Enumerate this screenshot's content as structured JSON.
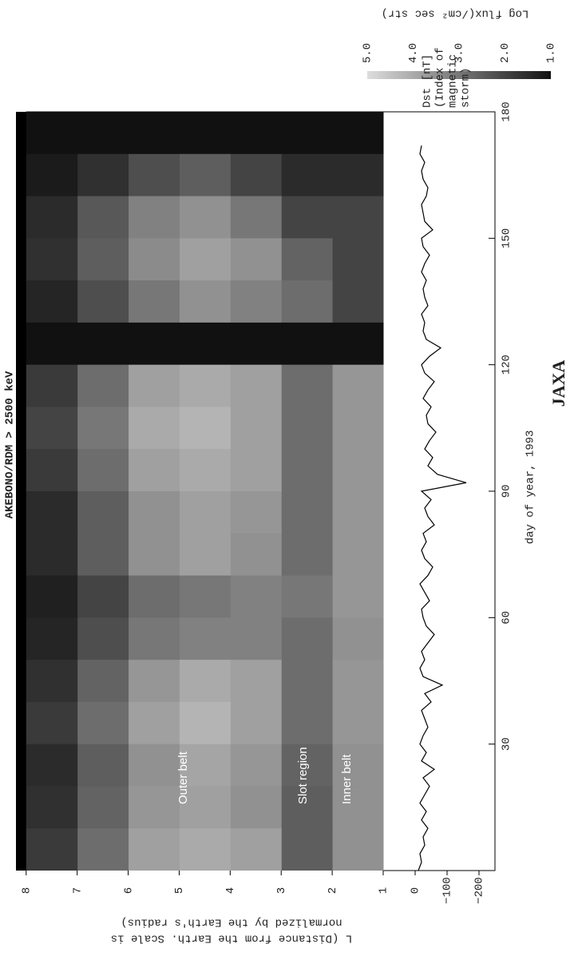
{
  "chart_data": [
    {
      "type": "heatmap",
      "title": "AKEBONO/RDM    > 2500 keV",
      "ylabel": [
        "L (Distance from the Earth. Scale is",
        "normalized by the Earth's radius)"
      ],
      "x_bins": [
        0,
        10,
        20,
        30,
        40,
        50,
        60,
        70,
        80,
        90,
        100,
        110,
        120,
        130,
        140,
        150,
        160,
        170,
        180
      ],
      "y_bins": [
        1,
        2,
        3,
        4,
        5,
        6,
        7,
        8
      ],
      "z": [
        [
          3.5,
          3.5,
          3.5,
          3.6,
          3.6,
          3.5,
          3.6,
          3.6,
          3.6,
          3.6,
          3.6,
          3.6,
          1.0,
          2.0,
          2.0,
          2.0,
          1.5,
          1.0
        ],
        [
          2.5,
          2.5,
          2.6,
          2.8,
          2.8,
          2.8,
          3.0,
          2.8,
          2.8,
          2.8,
          2.8,
          2.8,
          1.0,
          2.8,
          2.6,
          2.0,
          1.5,
          1.0
        ],
        [
          3.8,
          3.5,
          3.6,
          3.8,
          3.8,
          3.2,
          3.2,
          3.5,
          3.6,
          3.8,
          3.8,
          3.8,
          1.0,
          3.2,
          3.5,
          3.0,
          2.0,
          1.0
        ],
        [
          4.0,
          3.8,
          3.9,
          4.2,
          4.0,
          3.2,
          3.0,
          3.8,
          3.8,
          4.0,
          4.2,
          4.0,
          1.0,
          3.5,
          3.8,
          3.5,
          2.5,
          1.0
        ],
        [
          3.8,
          3.6,
          3.5,
          3.8,
          3.6,
          3.0,
          2.8,
          3.5,
          3.5,
          3.8,
          4.0,
          3.8,
          1.0,
          3.0,
          3.4,
          3.2,
          2.2,
          1.0
        ],
        [
          2.8,
          2.6,
          2.5,
          2.8,
          2.6,
          2.2,
          2.0,
          2.5,
          2.5,
          2.8,
          3.0,
          2.8,
          1.0,
          2.2,
          2.5,
          2.4,
          1.6,
          1.0
        ],
        [
          1.8,
          1.6,
          1.5,
          1.8,
          1.6,
          1.4,
          1.3,
          1.5,
          1.5,
          1.8,
          2.0,
          1.8,
          1.0,
          1.4,
          1.6,
          1.5,
          1.2,
          1.0
        ]
      ],
      "xlim": [
        0,
        180
      ],
      "ylim": [
        1,
        8.2
      ],
      "yticks": [
        1,
        2,
        3,
        4,
        5,
        6,
        7,
        8
      ],
      "colors": [
        "#111111",
        "#dddddd"
      ],
      "colorbar": {
        "label": "Log flux(/cm² sec str)",
        "lim": [
          1,
          5
        ],
        "ticks": [
          {
            "value": 5,
            "label": "5.0"
          },
          {
            "value": 4,
            "label": "4.0"
          },
          {
            "value": 3,
            "label": "3.0"
          },
          {
            "value": 2,
            "label": "2.0"
          },
          {
            "value": 1,
            "label": "1.0"
          }
        ]
      },
      "annotations": [
        "Outer belt",
        "Slot region",
        "Inner belt"
      ]
    },
    {
      "type": "line",
      "ylabel": [
        "Dst [nT]",
        "(Index of",
        "magnetic",
        "storm)"
      ],
      "xlabel": "day of year, 1993",
      "color": "#000000",
      "x": [
        0,
        2,
        4,
        6,
        8,
        10,
        12,
        14,
        16,
        18,
        20,
        22,
        24,
        26,
        28,
        30,
        32,
        34,
        36,
        38,
        40,
        42,
        44,
        46,
        48,
        50,
        52,
        54,
        56,
        58,
        60,
        62,
        64,
        66,
        68,
        70,
        72,
        74,
        76,
        78,
        80,
        82,
        84,
        86,
        88,
        90,
        92,
        94,
        96,
        98,
        100,
        102,
        104,
        106,
        108,
        110,
        112,
        114,
        116,
        118,
        120,
        122,
        124,
        126,
        128,
        130,
        132,
        134,
        136,
        138,
        140,
        142,
        144,
        146,
        148,
        150,
        152,
        154,
        156,
        158,
        160,
        162,
        164,
        166,
        168,
        170,
        172
      ],
      "values": [
        -10,
        -20,
        -15,
        -30,
        -25,
        -40,
        -20,
        -35,
        -15,
        -30,
        -45,
        -25,
        -60,
        -20,
        -35,
        -15,
        -25,
        -40,
        -30,
        -20,
        -50,
        -30,
        -85,
        -25,
        -15,
        -30,
        -20,
        -40,
        -60,
        -35,
        -25,
        -20,
        -45,
        -30,
        -15,
        -40,
        -55,
        -30,
        -20,
        -35,
        -25,
        -60,
        -40,
        -30,
        -50,
        -20,
        -160,
        -70,
        -40,
        -55,
        -30,
        -45,
        -65,
        -40,
        -35,
        -50,
        -25,
        -40,
        -60,
        -30,
        -20,
        -45,
        -80,
        -35,
        -25,
        -30,
        -20,
        -40,
        -30,
        -25,
        -35,
        -20,
        -30,
        -45,
        -25,
        -20,
        -55,
        -30,
        -25,
        -20,
        -35,
        -40,
        -25,
        -20,
        -30,
        -15,
        -20
      ],
      "xlim": [
        0,
        180
      ],
      "xticks": [
        30,
        60,
        90,
        120,
        150,
        180
      ],
      "ylim": [
        -250,
        100
      ],
      "yticks": [
        {
          "value": -200,
          "label": "−200"
        },
        {
          "value": -100,
          "label": "−100"
        },
        0
      ]
    },
    {
      "credit": "JAXA"
    }
  ]
}
